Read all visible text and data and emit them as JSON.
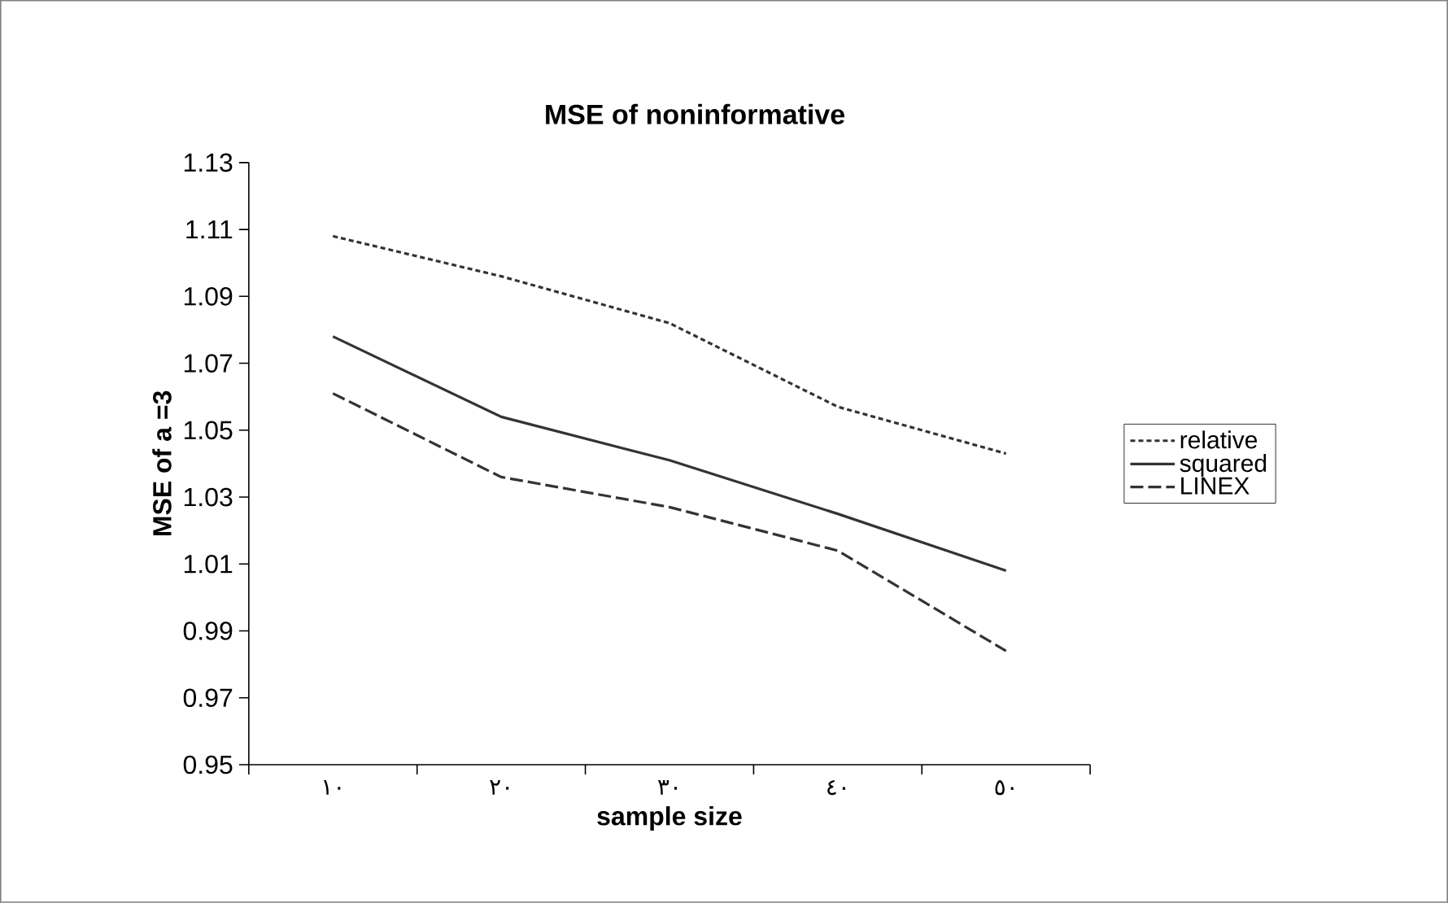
{
  "chart_data": {
    "type": "line",
    "title": "MSE of noninformative",
    "xlabel": "sample size",
    "ylabel": "MSE of a =3",
    "categories": [
      "١٠",
      "٢٠",
      "٣٠",
      "٤٠",
      "٥٠"
    ],
    "series": [
      {
        "name": "relative",
        "color": "#333333",
        "line_style": "dotted",
        "values": [
          1.108,
          1.096,
          1.082,
          1.057,
          1.043
        ]
      },
      {
        "name": "squared",
        "color": "#333333",
        "line_style": "solid",
        "values": [
          1.078,
          1.054,
          1.041,
          1.025,
          1.008
        ]
      },
      {
        "name": "LINEX",
        "color": "#333333",
        "line_style": "dashed",
        "values": [
          1.061,
          1.036,
          1.027,
          1.014,
          0.984
        ]
      }
    ],
    "ylim": [
      0.95,
      1.13
    ],
    "yticks": [
      0.95,
      0.97,
      0.99,
      1.01,
      1.03,
      1.05,
      1.07,
      1.09,
      1.11,
      1.13
    ],
    "grid": false,
    "legend": "right",
    "marker": "none"
  }
}
